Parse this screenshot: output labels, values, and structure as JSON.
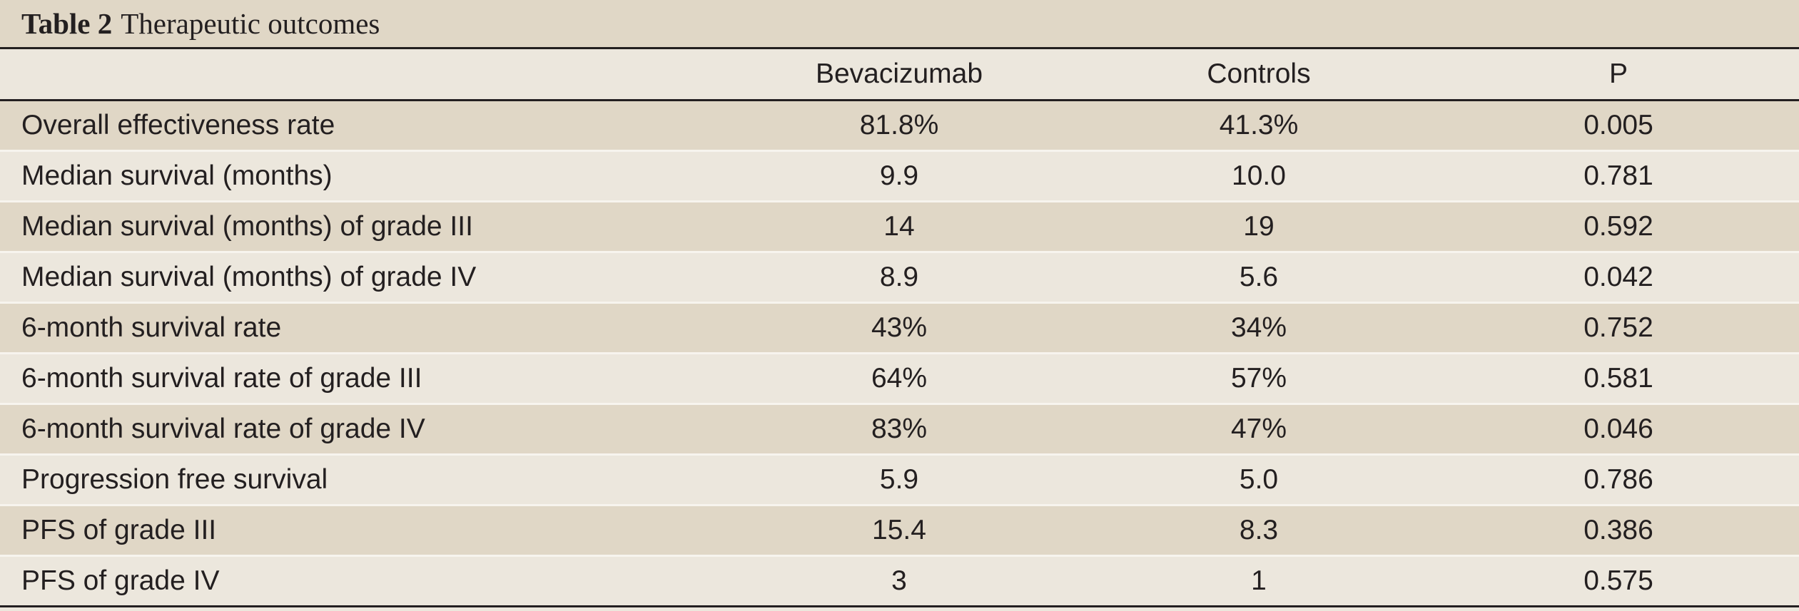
{
  "table": {
    "title_label": "Table 2",
    "title_text": "Therapeutic outcomes",
    "columns": [
      "",
      "Bevacizumab",
      "Controls",
      "P"
    ],
    "rows": [
      [
        "Overall effectiveness rate",
        "81.8%",
        "41.3%",
        "0.005"
      ],
      [
        "Median survival (months)",
        "9.9",
        "10.0",
        "0.781"
      ],
      [
        "Median survival (months) of grade III",
        "14",
        "19",
        "0.592"
      ],
      [
        "Median survival (months) of grade IV",
        "8.9",
        "5.6",
        "0.042"
      ],
      [
        "6-month survival rate",
        "43%",
        "34%",
        "0.752"
      ],
      [
        "6-month survival rate of grade III",
        "64%",
        "57%",
        "0.581"
      ],
      [
        "6-month survival rate of grade IV",
        "83%",
        "47%",
        "0.046"
      ],
      [
        "Progression free survival",
        "5.9",
        "5.0",
        "0.786"
      ],
      [
        "PFS of grade III",
        "15.4",
        "8.3",
        "0.386"
      ],
      [
        "PFS of grade IV",
        "3",
        "1",
        "0.575"
      ]
    ]
  }
}
